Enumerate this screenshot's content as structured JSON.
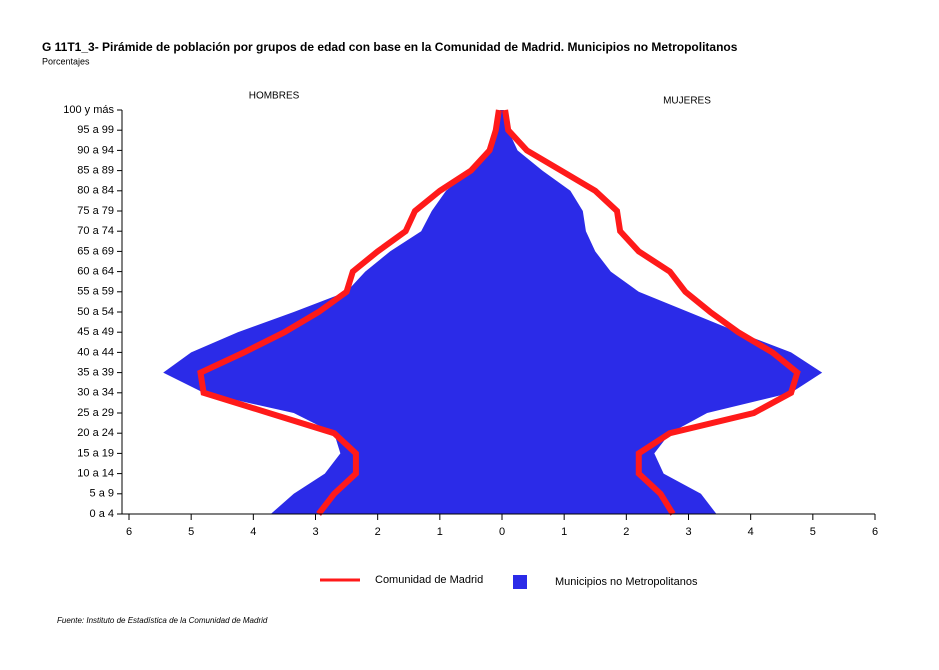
{
  "chart_data": {
    "type": "pyramid",
    "title": "G 11T1_3- Pirámide de población por grupos de edad con base en la Comunidad de Madrid.  Municipios no Metropolitanos",
    "subtitle": "Porcentajes",
    "source": "Fuente: Instituto de Estadística de la Comunidad de Madrid",
    "left_label": "HOMBRES",
    "right_label": "MUJERES",
    "categories": [
      "0 a 4",
      "5 a 9",
      "10 a 14",
      "15 a 19",
      "20 a 24",
      "25 a 29",
      "30 a 34",
      "35 a 39",
      "40 a 44",
      "45 a 49",
      "50 a 54",
      "55 a 59",
      "60 a 64",
      "65 a 69",
      "70 a 74",
      "75 a 79",
      "80 a 84",
      "85 a 89",
      "90 a 94",
      "95 a 99",
      "100 y más"
    ],
    "xlim": [
      -6,
      6
    ],
    "xticks": [
      {
        "value": -6,
        "label": "6"
      },
      {
        "value": -5,
        "label": "5"
      },
      {
        "value": -4,
        "label": "4"
      },
      {
        "value": -3,
        "label": "3"
      },
      {
        "value": -2,
        "label": "2"
      },
      {
        "value": -1,
        "label": "1"
      },
      0,
      1,
      2,
      3,
      4,
      5,
      6
    ],
    "series": [
      {
        "name": "Municipios no Metropolitanos",
        "color": "#2b2be8",
        "style": "area",
        "hombres": [
          3.72,
          3.35,
          2.85,
          2.6,
          2.7,
          3.35,
          4.8,
          5.45,
          5.0,
          4.25,
          3.35,
          2.5,
          2.2,
          1.8,
          1.3,
          1.13,
          0.9,
          0.5,
          0.25,
          0.1,
          0.03
        ],
        "mujeres": [
          3.45,
          3.2,
          2.6,
          2.45,
          2.7,
          3.3,
          4.65,
          5.15,
          4.65,
          3.8,
          3.0,
          2.2,
          1.75,
          1.5,
          1.35,
          1.3,
          1.1,
          0.65,
          0.25,
          0.1,
          0.03
        ]
      },
      {
        "name": "Comunidad de Madrid",
        "color": "#ff1a1a",
        "style": "line",
        "hombres": [
          2.95,
          2.7,
          2.35,
          2.35,
          2.7,
          3.75,
          4.8,
          4.85,
          4.15,
          3.5,
          2.95,
          2.5,
          2.4,
          2.0,
          1.55,
          1.4,
          1.0,
          0.5,
          0.2,
          0.1,
          0.05
        ],
        "mujeres": [
          2.75,
          2.55,
          2.2,
          2.2,
          2.7,
          4.05,
          4.65,
          4.75,
          4.35,
          3.8,
          3.35,
          2.95,
          2.7,
          2.2,
          1.9,
          1.85,
          1.5,
          0.95,
          0.4,
          0.1,
          0.05
        ]
      }
    ]
  }
}
